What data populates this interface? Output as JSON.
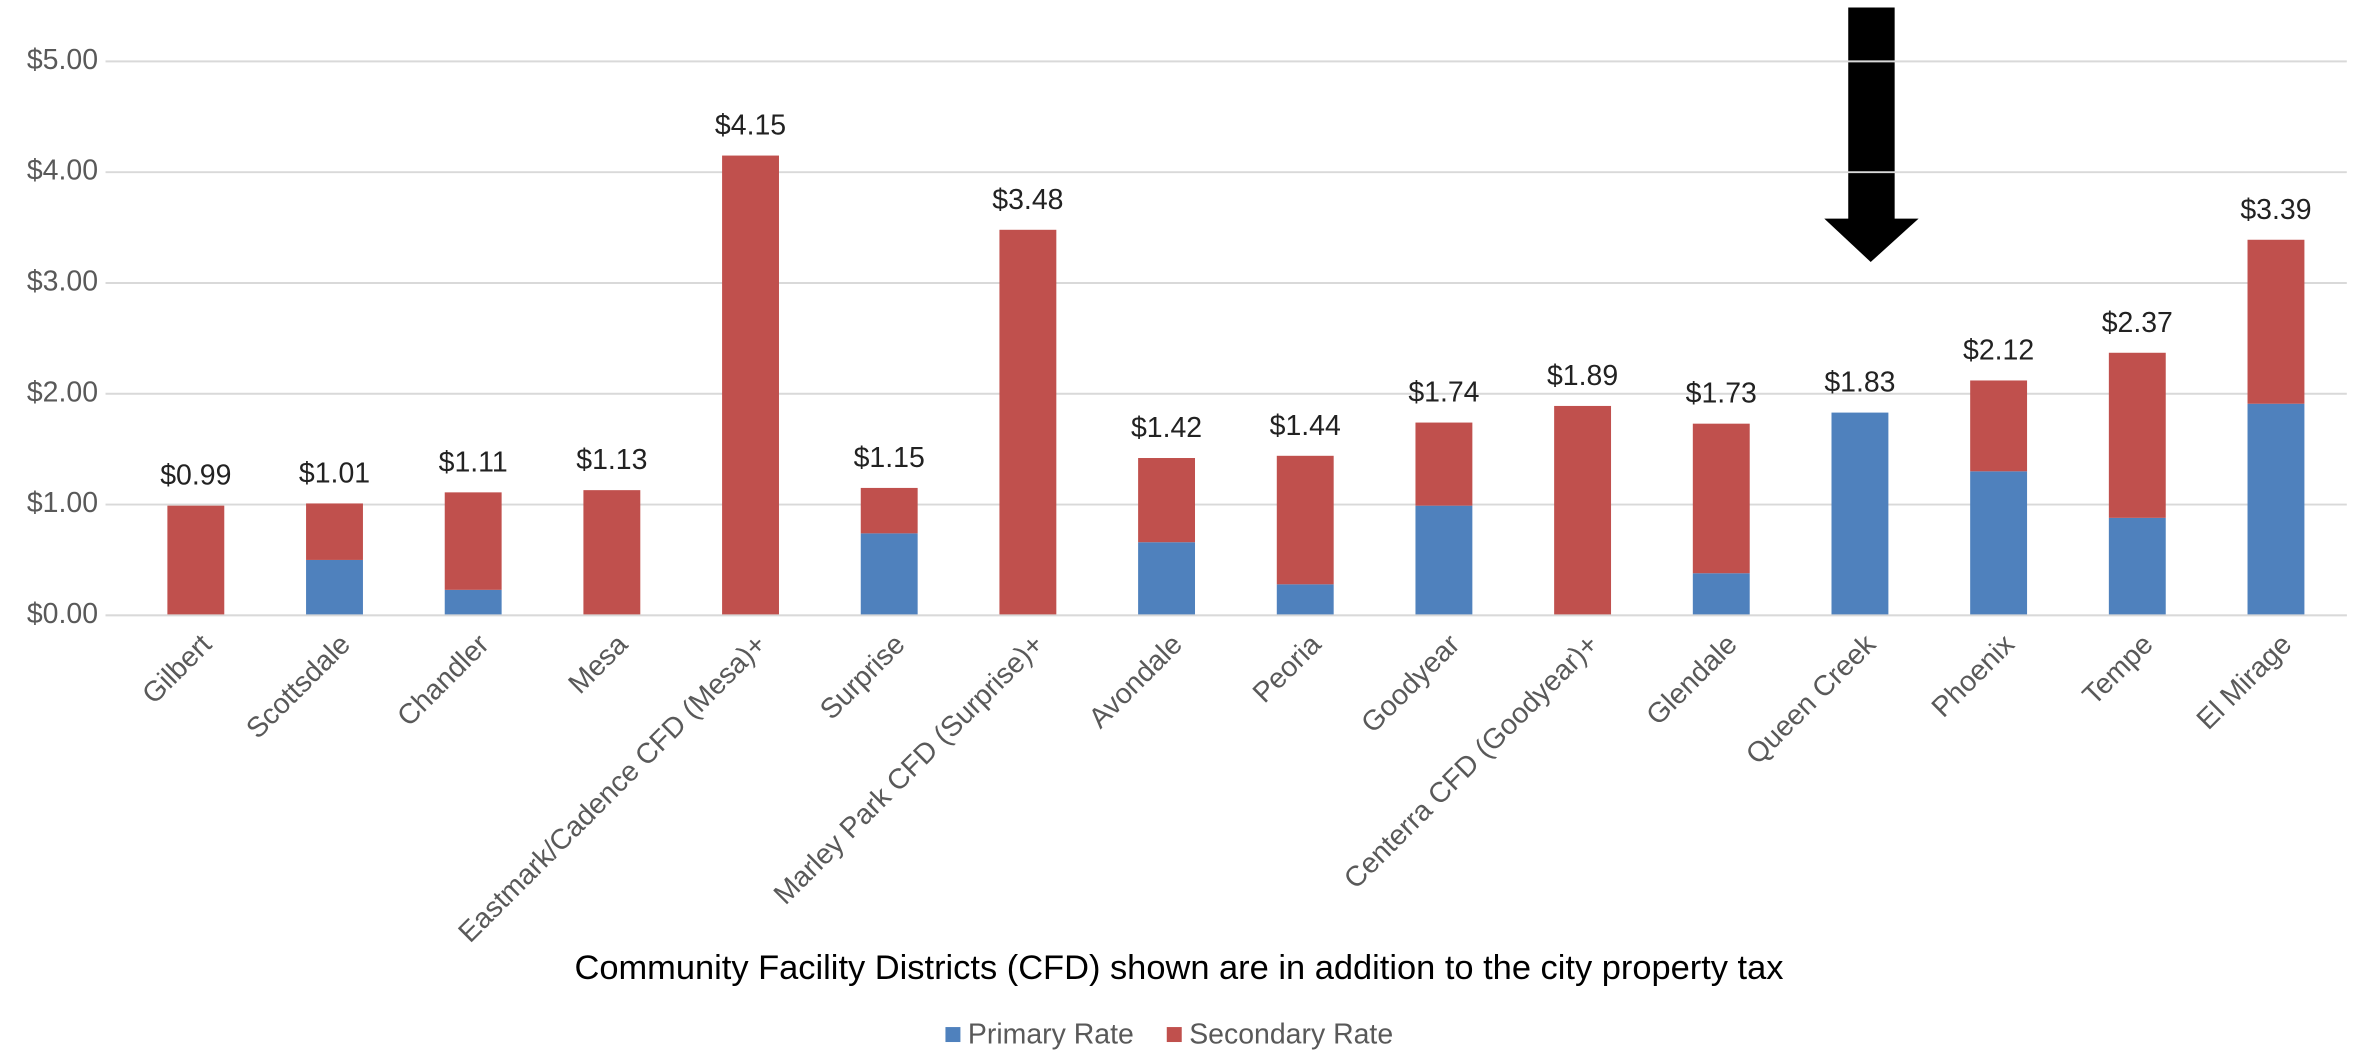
{
  "chart_data": {
    "type": "stacked-bar",
    "categories": [
      "Gilbert",
      "Scottsdale",
      "Chandler",
      "Mesa",
      "Eastmark/Cadence CFD (Mesa)+",
      "Surprise",
      "Marley Park CFD (Surprise)+",
      "Avondale",
      "Peoria",
      "Goodyear",
      "Centerra CFD (Goodyear)+",
      "Glendale",
      "Queen Creek",
      "Phoenix",
      "Tempe",
      "El Mirage"
    ],
    "series": [
      {
        "name": "Primary Rate",
        "color": "#4f81bd",
        "values": [
          0,
          0.5,
          0.23,
          0,
          0,
          0.74,
          0,
          0.66,
          0.28,
          0.99,
          0,
          0.38,
          1.83,
          1.3,
          0.88,
          1.91
        ]
      },
      {
        "name": "Secondary Rate",
        "color": "#c0504d",
        "values": [
          0.99,
          0.51,
          0.88,
          1.13,
          4.15,
          0.41,
          3.48,
          0.76,
          1.16,
          0.75,
          1.89,
          1.35,
          0,
          0.82,
          1.49,
          1.48
        ]
      }
    ],
    "value_labels": [
      "$0.99",
      "$1.01",
      "$1.11",
      "$1.13",
      "$4.15",
      "$1.15",
      "$3.48",
      "$1.42",
      "$1.44",
      "$1.74",
      "$1.89",
      "$1.73",
      "$1.83",
      "$2.12",
      "$2.37",
      "$3.39"
    ],
    "ylim": [
      0,
      5.5
    ],
    "yticks": [
      {
        "value": 0,
        "label": "$0.00"
      },
      {
        "value": 1,
        "label": "$1.00"
      },
      {
        "value": 2,
        "label": "$2.00"
      },
      {
        "value": 3,
        "label": "$3.00"
      },
      {
        "value": 4,
        "label": "$4.00"
      },
      {
        "value": 5,
        "label": "$5.00"
      }
    ],
    "grid": true,
    "legend": "bottom",
    "annotation": "Community  Facility Districts (CFD) shown are in addition to the city property tax"
  }
}
